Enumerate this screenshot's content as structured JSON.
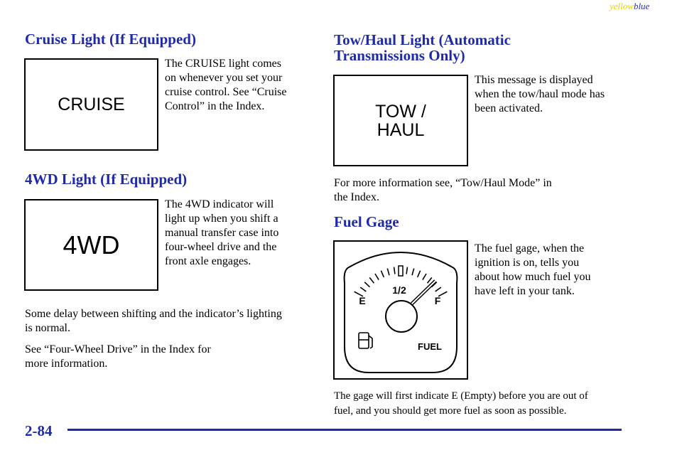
{
  "header": {
    "tag_yellow": "yellow",
    "tag_blue": "blue"
  },
  "cruise": {
    "heading": "Cruise Light (If Equipped)",
    "indicator": "CRUISE",
    "description": [
      "The CRUISE light comes",
      "on whenever you set your",
      "cruise control. See “Cruise",
      "Control” in the Index."
    ]
  },
  "four_wd": {
    "heading": "4WD Light (If Equipped)",
    "indicator": "4WD",
    "description": [
      "The 4WD indicator will",
      "light up when you shift a",
      "manual transfer case into",
      "four-wheel drive and the",
      "front axle engages."
    ],
    "notes": [
      [
        "Some delay between shifting and the indicator’s lighting",
        "is normal."
      ],
      [
        "See “Four-Wheel Drive” in the Index for",
        "more information."
      ]
    ]
  },
  "tow_haul": {
    "heading": [
      "Tow/Haul Light (Automatic",
      "Transmissions Only)"
    ],
    "indicator": [
      "TOW /",
      "HAUL"
    ],
    "description": [
      "This message is displayed",
      "when the tow/haul mode has",
      "been activated."
    ],
    "note": [
      "For more information see, “Tow/Haul Mode” in",
      "the Index."
    ]
  },
  "fuel_gage": {
    "heading": "Fuel Gage",
    "gauge_labels": {
      "half": "1/2",
      "empty": "E",
      "full": "F",
      "fuel": "FUEL"
    },
    "description": [
      "The fuel gage, when the",
      "ignition is on, tells you",
      "about how much fuel you",
      "have left in your tank."
    ],
    "note": [
      "The gage will first indicate E (Empty) before you are out of",
      "fuel, and you should get more fuel as soon as possible."
    ]
  },
  "footer": {
    "page_number": "2-84"
  }
}
